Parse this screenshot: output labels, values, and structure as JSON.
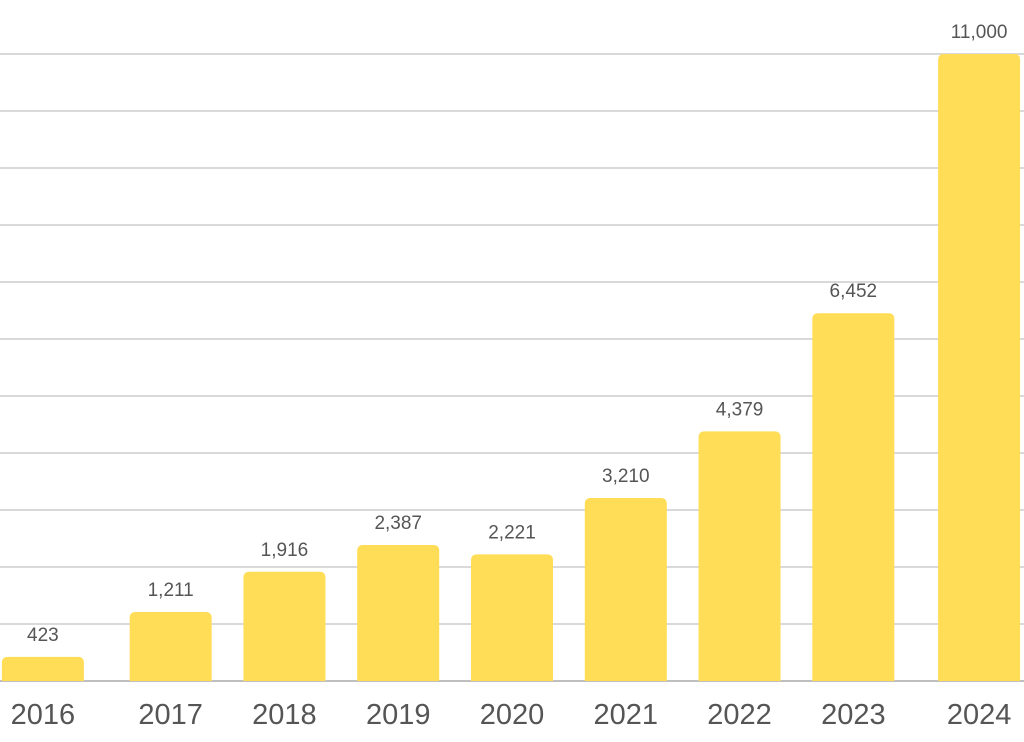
{
  "chart_data": {
    "type": "bar",
    "categories": [
      "2016",
      "2017",
      "2018",
      "2019",
      "2020",
      "2021",
      "2022",
      "2023",
      "2024"
    ],
    "values": [
      423,
      1211,
      1916,
      2387,
      2221,
      3210,
      4379,
      6452,
      11000
    ],
    "data_labels": [
      "423",
      "1,211",
      "1,916",
      "2,387",
      "2,221",
      "3,210",
      "4,379",
      "6,452",
      "11,000"
    ],
    "title": "",
    "xlabel": "",
    "ylabel": "",
    "ylim": [
      0,
      11000
    ],
    "grid": true,
    "y_tick_labels_visible": false,
    "legend": "none",
    "colors": {
      "bar": "#FFDD57",
      "grid": "#d9d9d9",
      "text": "#555555"
    }
  }
}
